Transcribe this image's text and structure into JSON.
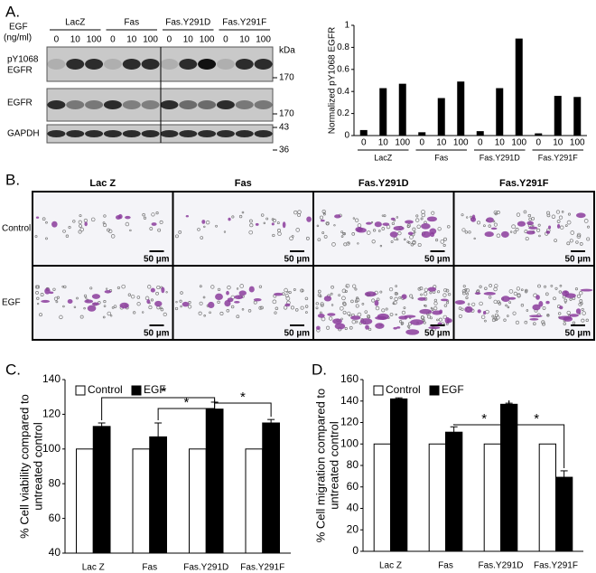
{
  "panel_labels": [
    "A.",
    "B.",
    "C.",
    "D."
  ],
  "blot": {
    "header": [
      "EGF",
      "(ng/ml)"
    ],
    "groups": [
      "LacZ",
      "Fas",
      "Fas.Y291D",
      "Fas.Y291F"
    ],
    "doses": [
      "0",
      "10",
      "100",
      "0",
      "10",
      "100",
      "0",
      "10",
      "100",
      "0",
      "10",
      "100"
    ],
    "rows": [
      "pY1068",
      "EGFR",
      "EGFR",
      "GAPDH"
    ],
    "markers": [
      "kDa",
      "170",
      "170",
      "43",
      "36"
    ]
  },
  "micrographs": {
    "columns": [
      "Lac Z",
      "Fas",
      "Fas.Y291D",
      "Fas.Y291F"
    ],
    "rows": [
      "Control",
      "EGF"
    ],
    "scale_bars": [
      "50 µm",
      "50 µm",
      "50 µm",
      "50 µm",
      "50 µm",
      "50 µm",
      "50 µm",
      "50 µm"
    ]
  },
  "chart_data": [
    {
      "type": "bar",
      "ylabel": "Normalized pY1068 EGFR",
      "categories": [
        "0",
        "10",
        "100",
        "0",
        "10",
        "100",
        "0",
        "10",
        "100",
        "0",
        "10",
        "100"
      ],
      "groups": [
        "LacZ",
        "Fas",
        "Fas.Y291D",
        "Fas.Y291F"
      ],
      "values": [
        0.05,
        0.43,
        0.47,
        0.03,
        0.34,
        0.49,
        0.04,
        0.43,
        0.88,
        0.02,
        0.36,
        0.35
      ],
      "color": "#000000",
      "ylim": [
        0,
        1
      ],
      "yticks": [
        0,
        0.2,
        0.4,
        0.6,
        0.8,
        1
      ]
    },
    {
      "type": "bar",
      "ylabel": [
        "% Cell viability compared to",
        "untreated control"
      ],
      "categories": [
        "Lac Z",
        "Fas",
        "Fas.Y291D",
        "Fas.Y291F"
      ],
      "series": [
        {
          "name": "Control",
          "color": "#ffffff",
          "values": [
            100,
            100,
            100,
            100
          ]
        },
        {
          "name": "EGF",
          "color": "#000000",
          "values": [
            113,
            107,
            123,
            115
          ],
          "errors": [
            2,
            8,
            4,
            2
          ]
        }
      ],
      "ylim": [
        40,
        140
      ],
      "yticks": [
        40,
        60,
        80,
        100,
        120,
        140
      ],
      "annotations": [
        "*",
        "*",
        "*"
      ]
    },
    {
      "type": "bar",
      "ylabel": [
        "% Cell migration compared to",
        "untreated control"
      ],
      "categories": [
        "Lac Z",
        "Fas",
        "Fas.Y291D",
        "Fas.Y291F"
      ],
      "series": [
        {
          "name": "Control",
          "color": "#ffffff",
          "values": [
            100,
            100,
            100,
            100
          ]
        },
        {
          "name": "EGF",
          "color": "#000000",
          "values": [
            142,
            111,
            137,
            69
          ],
          "errors": [
            1,
            5,
            1,
            6
          ]
        }
      ],
      "ylim": [
        0,
        160
      ],
      "yticks": [
        0,
        20,
        40,
        60,
        80,
        100,
        120,
        140,
        160
      ],
      "annotations": [
        "*",
        "*"
      ]
    }
  ]
}
